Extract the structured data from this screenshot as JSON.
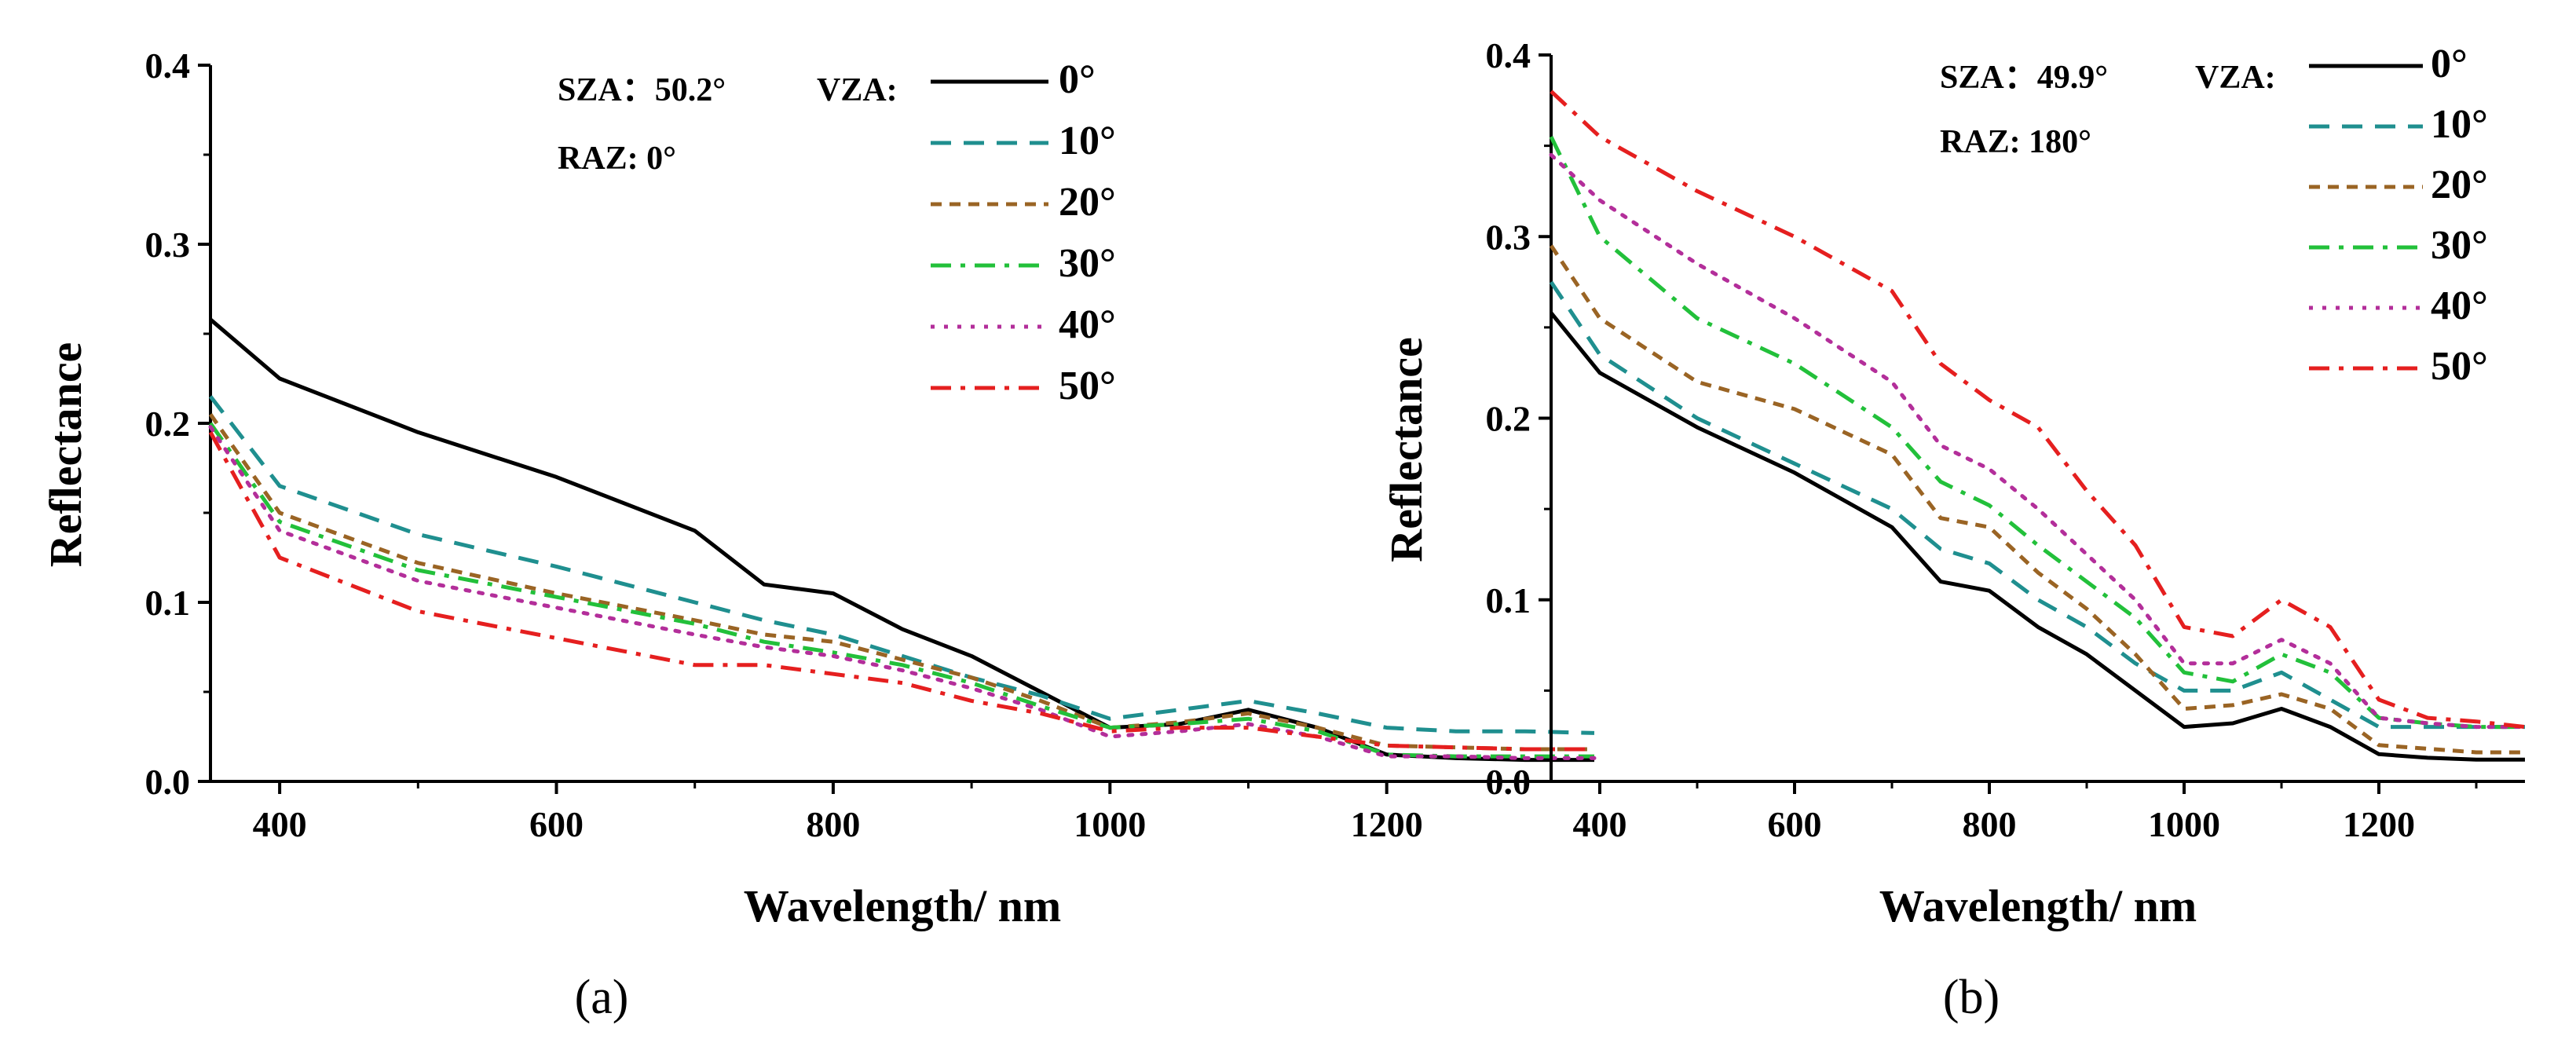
{
  "chart_data": [
    {
      "type": "line",
      "panel_label": "(a)",
      "xlabel": "Wavelength/ nm",
      "ylabel": "Reflectance",
      "xlim": [
        350,
        1350
      ],
      "ylim": [
        0.0,
        0.4
      ],
      "xticks": [
        "400",
        "600",
        "800",
        "1000",
        "1200"
      ],
      "yticks": [
        "0.0",
        "0.1",
        "0.2",
        "0.3",
        "0.4"
      ],
      "annotation": {
        "sza": "SZA：50.2°",
        "raz": "RAZ:  0°",
        "vza": "VZA:"
      },
      "legend_position": "top-right",
      "x": [
        350,
        400,
        500,
        600,
        700,
        750,
        800,
        850,
        900,
        950,
        1000,
        1050,
        1100,
        1150,
        1200,
        1250,
        1300,
        1350
      ],
      "series": [
        {
          "name": "0°",
          "color": "#000000",
          "dash": "solid",
          "values": [
            0.258,
            0.225,
            0.195,
            0.17,
            0.14,
            0.11,
            0.105,
            0.085,
            0.07,
            0.05,
            0.03,
            0.032,
            0.04,
            0.03,
            0.015,
            0.013,
            0.012,
            0.012
          ]
        },
        {
          "name": "10°",
          "color": "#1f8f8f",
          "dash": "dash",
          "values": [
            0.215,
            0.165,
            0.138,
            0.12,
            0.1,
            0.09,
            0.082,
            0.07,
            0.058,
            0.048,
            0.035,
            0.04,
            0.045,
            0.038,
            0.03,
            0.028,
            0.028,
            0.027
          ]
        },
        {
          "name": "20°",
          "color": "#9a6424",
          "dash": "short",
          "values": [
            0.205,
            0.15,
            0.122,
            0.105,
            0.09,
            0.082,
            0.078,
            0.068,
            0.058,
            0.045,
            0.03,
            0.033,
            0.038,
            0.03,
            0.02,
            0.019,
            0.018,
            0.018
          ]
        },
        {
          "name": "30°",
          "color": "#22c03a",
          "dash": "dashdot",
          "values": [
            0.2,
            0.145,
            0.118,
            0.103,
            0.088,
            0.078,
            0.072,
            0.065,
            0.055,
            0.042,
            0.03,
            0.032,
            0.035,
            0.028,
            0.015,
            0.014,
            0.014,
            0.014
          ]
        },
        {
          "name": "40°",
          "color": "#b32e9a",
          "dash": "dot",
          "values": [
            0.198,
            0.14,
            0.112,
            0.097,
            0.082,
            0.075,
            0.07,
            0.062,
            0.052,
            0.04,
            0.025,
            0.028,
            0.032,
            0.025,
            0.014,
            0.014,
            0.013,
            0.013
          ]
        },
        {
          "name": "50°",
          "color": "#e51f1f",
          "dash": "dashdot",
          "values": [
            0.195,
            0.125,
            0.095,
            0.08,
            0.065,
            0.065,
            0.06,
            0.055,
            0.045,
            0.038,
            0.028,
            0.03,
            0.03,
            0.025,
            0.02,
            0.019,
            0.018,
            0.018
          ]
        }
      ]
    },
    {
      "type": "line",
      "panel_label": "(b)",
      "xlabel": "Wavelength/ nm",
      "ylabel": "Reflectance",
      "xlim": [
        350,
        1350
      ],
      "ylim": [
        0.0,
        0.4
      ],
      "xticks": [
        "400",
        "600",
        "800",
        "1000",
        "1200"
      ],
      "yticks": [
        "0.0",
        "0.1",
        "0.2",
        "0.3",
        "0.4"
      ],
      "annotation": {
        "sza": "SZA：49.9°",
        "raz": "RAZ:  180°",
        "vza": "VZA:"
      },
      "legend_position": "top-right",
      "x": [
        350,
        400,
        500,
        600,
        700,
        750,
        800,
        850,
        900,
        950,
        1000,
        1050,
        1100,
        1150,
        1200,
        1250,
        1300,
        1350
      ],
      "series": [
        {
          "name": "0°",
          "color": "#000000",
          "dash": "solid",
          "values": [
            0.258,
            0.225,
            0.195,
            0.17,
            0.14,
            0.11,
            0.105,
            0.085,
            0.07,
            0.05,
            0.03,
            0.032,
            0.04,
            0.03,
            0.015,
            0.013,
            0.012,
            0.012
          ]
        },
        {
          "name": "10°",
          "color": "#1f8f8f",
          "dash": "dash",
          "values": [
            0.275,
            0.235,
            0.2,
            0.175,
            0.15,
            0.128,
            0.12,
            0.1,
            0.085,
            0.065,
            0.05,
            0.05,
            0.06,
            0.045,
            0.03,
            0.03,
            0.03,
            0.03
          ]
        },
        {
          "name": "20°",
          "color": "#9a6424",
          "dash": "short",
          "values": [
            0.295,
            0.255,
            0.22,
            0.205,
            0.18,
            0.145,
            0.14,
            0.115,
            0.095,
            0.07,
            0.04,
            0.042,
            0.048,
            0.04,
            0.02,
            0.018,
            0.016,
            0.016
          ]
        },
        {
          "name": "30°",
          "color": "#22c03a",
          "dash": "dashdot",
          "values": [
            0.355,
            0.3,
            0.255,
            0.23,
            0.195,
            0.165,
            0.152,
            0.13,
            0.11,
            0.09,
            0.06,
            0.055,
            0.07,
            0.06,
            0.035,
            0.032,
            0.03,
            0.03
          ]
        },
        {
          "name": "40°",
          "color": "#b32e9a",
          "dash": "dot",
          "values": [
            0.345,
            0.32,
            0.285,
            0.255,
            0.22,
            0.185,
            0.172,
            0.15,
            0.125,
            0.1,
            0.065,
            0.065,
            0.078,
            0.065,
            0.035,
            0.032,
            0.03,
            0.03
          ]
        },
        {
          "name": "50°",
          "color": "#e51f1f",
          "dash": "dashdot",
          "values": [
            0.38,
            0.355,
            0.325,
            0.3,
            0.27,
            0.23,
            0.21,
            0.195,
            0.16,
            0.13,
            0.085,
            0.08,
            0.1,
            0.085,
            0.045,
            0.035,
            0.033,
            0.03
          ]
        }
      ]
    }
  ]
}
